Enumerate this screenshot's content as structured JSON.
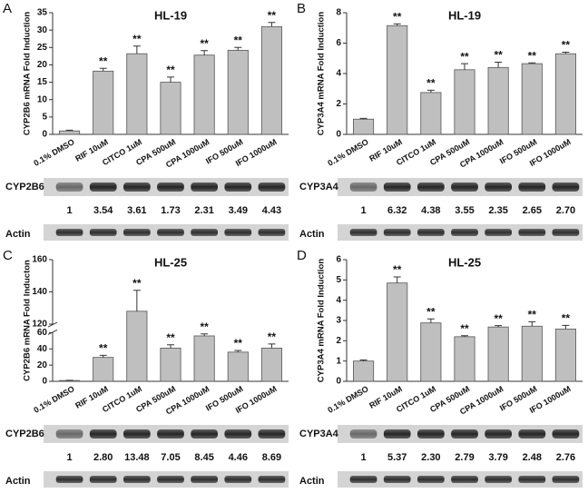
{
  "chart_data": [
    {
      "type": "bar",
      "panel": "A",
      "title": "HL-19",
      "ylabel": "CYP2B6 mRNA Fold Induction",
      "categories": [
        "0.1% DMSO",
        "RIF 10uM",
        "CITCO 1uM",
        "CPA 500uM",
        "CPA 1000uM",
        "IFO 500uM",
        "IFO 1000uM"
      ],
      "values": [
        1,
        18.2,
        23.2,
        15,
        22.8,
        24.2,
        31
      ],
      "errors": [
        0.2,
        0.8,
        2.2,
        1.5,
        1.3,
        0.8,
        1.2
      ],
      "significance": [
        null,
        "**",
        "**",
        "**",
        "**",
        "**",
        "**"
      ],
      "ylim": [
        0,
        35
      ],
      "yticks": [
        0,
        5,
        10,
        15,
        20,
        25,
        30,
        35
      ],
      "color": "#bfbfbf",
      "blot": {
        "protein": "CYP2B6",
        "control": "Actin",
        "values": [
          1,
          3.54,
          3.61,
          1.73,
          2.31,
          3.49,
          4.43
        ]
      }
    },
    {
      "type": "bar",
      "panel": "B",
      "title": "HL-19",
      "ylabel": "CYP3A4 mRNA Fold Induction",
      "categories": [
        "0.1% DMSO",
        "RIF 10uM",
        "CITCO 1uM",
        "CPA 500uM",
        "CPA 1000uM",
        "IFO 500uM",
        "IFO 1000uM"
      ],
      "values": [
        1,
        7.15,
        2.75,
        4.25,
        4.4,
        4.65,
        5.3
      ],
      "errors": [
        0.05,
        0.12,
        0.15,
        0.4,
        0.35,
        0.05,
        0.1
      ],
      "significance": [
        null,
        "**",
        "**",
        "**",
        "**",
        "**",
        "**"
      ],
      "ylim": [
        0,
        8
      ],
      "yticks": [
        0,
        2,
        4,
        6,
        8
      ],
      "color": "#bfbfbf",
      "blot": {
        "protein": "CYP3A4",
        "control": "Actin",
        "values": [
          1,
          6.32,
          4.38,
          3.55,
          2.35,
          2.65,
          2.7
        ],
        "value_labels": [
          "1",
          "6.32",
          "4.38",
          "3.55",
          "2.35",
          "2.65",
          "2.70"
        ]
      }
    },
    {
      "type": "bar",
      "panel": "C",
      "title": "HL-25",
      "ylabel": "CYP2B6 mRNA Fold Inducton",
      "categories": [
        "0.1% DMSO",
        "RIF 10uM",
        "CITCO 1uM",
        "CPA 500uM",
        "CPA 1000uM",
        "IFO 500uM",
        "IFO 1000uM"
      ],
      "values": [
        1,
        29.5,
        128,
        41,
        56,
        36,
        41
      ],
      "errors": [
        0.2,
        2.5,
        13,
        4,
        2.5,
        2,
        5
      ],
      "significance": [
        null,
        "**",
        "**",
        "**",
        "**",
        "**",
        "**"
      ],
      "ylim": [
        0,
        160
      ],
      "yticks": [
        0,
        20,
        40,
        60,
        120,
        140,
        160
      ],
      "axis_break": [
        60,
        120
      ],
      "color": "#bfbfbf",
      "blot": {
        "protein": "CYP2B6",
        "control": "Actin",
        "values": [
          1,
          2.8,
          13.48,
          7.05,
          8.45,
          4.46,
          8.69
        ],
        "value_labels": [
          "1",
          "2.80",
          "13.48",
          "7.05",
          "8.45",
          "4.46",
          "8.69"
        ]
      }
    },
    {
      "type": "bar",
      "panel": "D",
      "title": "HL-25",
      "ylabel": "CYP3A4 mRNA Fold Induction",
      "categories": [
        "0.1% DMSO",
        "RIF 10uM",
        "CITCO 1uM",
        "CPA 500uM",
        "CPA 1000uM",
        "IFO 500uM",
        "IFO 1000uM"
      ],
      "values": [
        1,
        4.85,
        2.88,
        2.2,
        2.68,
        2.72,
        2.58
      ],
      "errors": [
        0.05,
        0.3,
        0.2,
        0.05,
        0.07,
        0.22,
        0.18
      ],
      "significance": [
        null,
        "**",
        "**",
        "**",
        "**",
        "**",
        "**"
      ],
      "ylim": [
        0,
        6
      ],
      "yticks": [
        0,
        1,
        2,
        3,
        4,
        5,
        6
      ],
      "color": "#bfbfbf",
      "blot": {
        "protein": "CYP3A4",
        "control": "Actin",
        "values": [
          1,
          5.37,
          2.3,
          2.79,
          3.79,
          2.48,
          2.76
        ],
        "value_labels": [
          "1",
          "5.37",
          "2.30",
          "2.79",
          "3.79",
          "2.48",
          "2.76"
        ]
      }
    }
  ]
}
